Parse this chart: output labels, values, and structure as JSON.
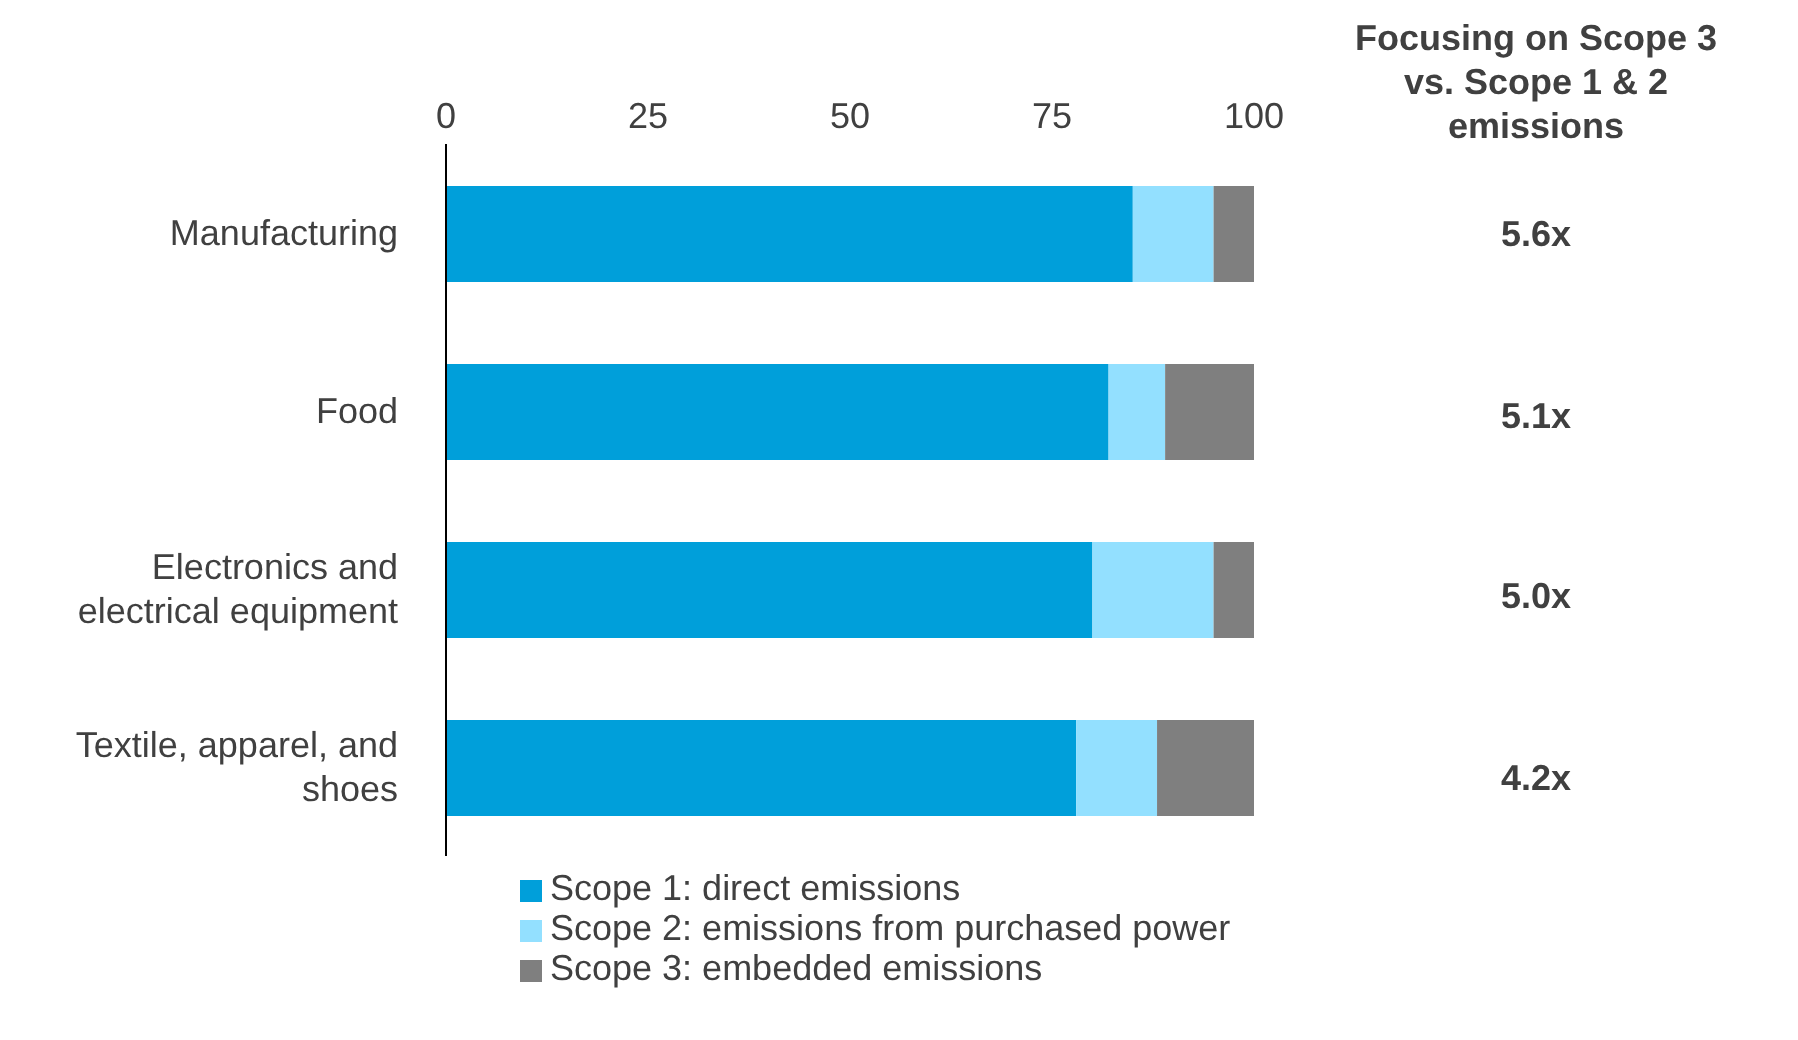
{
  "chart_data": {
    "type": "bar",
    "orientation": "horizontal",
    "stacked": true,
    "categories": [
      "Manufacturing",
      "Food",
      "Electronics and electrical equipment",
      "Textile, apparel, and shoes"
    ],
    "series": [
      {
        "name": "Scope 1: direct emissions",
        "color": "#009fda",
        "values": [
          85,
          82,
          80,
          78
        ]
      },
      {
        "name": "Scope 2: emissions from purchased power",
        "color": "#93e0ff",
        "values": [
          10,
          7,
          15,
          10
        ]
      },
      {
        "name": "Scope 3: embedded emissions",
        "color": "#7f7f7f",
        "values": [
          5,
          11,
          5,
          12
        ]
      }
    ],
    "xlim": [
      0,
      100
    ],
    "xticks": [
      0,
      25,
      50,
      75,
      100
    ],
    "grid": false,
    "legend": "bottom",
    "annotations": [
      "Focusing on Scope 3 vs. Scope 1 & 2 emissions",
      "5.6x",
      "5.1x",
      "5.0x",
      "4.2x"
    ]
  }
}
